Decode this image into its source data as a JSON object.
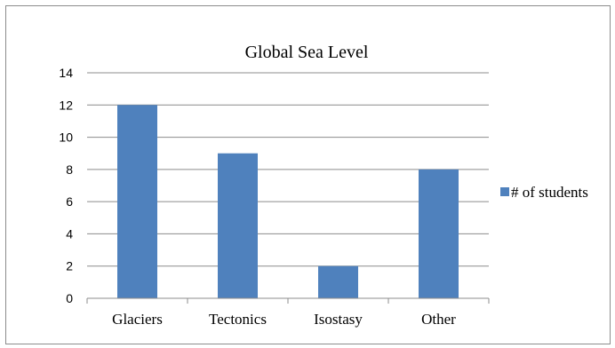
{
  "chart_data": {
    "type": "bar",
    "title": "Global Sea Level",
    "categories": [
      "Glaciers",
      "Tectonics",
      "Isostasy",
      "Other"
    ],
    "series": [
      {
        "name": "# of students",
        "values": [
          12,
          9,
          2,
          8
        ],
        "color": "#4F81BD"
      }
    ],
    "ylim": [
      0,
      14
    ],
    "yticks": [
      0,
      2,
      4,
      6,
      8,
      10,
      12,
      14
    ],
    "grid": true,
    "legend": "right"
  }
}
